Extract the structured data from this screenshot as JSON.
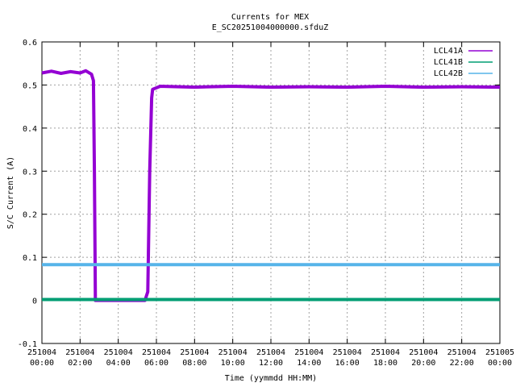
{
  "chart_data": {
    "type": "line",
    "title": "Currents for MEX",
    "subtitle": "E_SC20251004000000.sfduZ",
    "xlabel": "Time (yymmdd HH:MM)",
    "ylabel": "S/C Current (A)",
    "xlim": [
      0,
      24
    ],
    "ylim": [
      -0.1,
      0.6
    ],
    "grid": true,
    "legend_position": "top-right",
    "y_ticks": [
      {
        "value": -0.1,
        "label": "-0.1"
      },
      {
        "value": 0,
        "label": "0"
      },
      {
        "value": 0.1,
        "label": "0.1"
      },
      {
        "value": 0.2,
        "label": "0.2"
      },
      {
        "value": 0.3,
        "label": "0.3"
      },
      {
        "value": 0.4,
        "label": "0.4"
      },
      {
        "value": 0.5,
        "label": "0.5"
      },
      {
        "value": 0.6,
        "label": "0.6"
      }
    ],
    "x_ticks": [
      {
        "value": 0,
        "date": "251004",
        "time": "00:00"
      },
      {
        "value": 2,
        "date": "251004",
        "time": "02:00"
      },
      {
        "value": 4,
        "date": "251004",
        "time": "04:00"
      },
      {
        "value": 6,
        "date": "251004",
        "time": "06:00"
      },
      {
        "value": 8,
        "date": "251004",
        "time": "08:00"
      },
      {
        "value": 10,
        "date": "251004",
        "time": "10:00"
      },
      {
        "value": 12,
        "date": "251004",
        "time": "12:00"
      },
      {
        "value": 14,
        "date": "251004",
        "time": "14:00"
      },
      {
        "value": 16,
        "date": "251004",
        "time": "16:00"
      },
      {
        "value": 18,
        "date": "251004",
        "time": "18:00"
      },
      {
        "value": 20,
        "date": "251004",
        "time": "20:00"
      },
      {
        "value": 22,
        "date": "251004",
        "time": "22:00"
      },
      {
        "value": 24,
        "date": "251005",
        "time": "00:00"
      }
    ],
    "series": [
      {
        "name": "LCL41A",
        "color": "#9400d3",
        "points": [
          [
            0,
            0.528
          ],
          [
            0.5,
            0.532
          ],
          [
            1,
            0.527
          ],
          [
            1.5,
            0.531
          ],
          [
            2,
            0.528
          ],
          [
            2.3,
            0.533
          ],
          [
            2.6,
            0.525
          ],
          [
            2.7,
            0.51
          ],
          [
            2.75,
            0.3
          ],
          [
            2.8,
            0.0
          ],
          [
            3.5,
            0.0
          ],
          [
            4.5,
            0.0
          ],
          [
            5.4,
            0.0
          ],
          [
            5.55,
            0.02
          ],
          [
            5.65,
            0.3
          ],
          [
            5.75,
            0.47
          ],
          [
            5.8,
            0.49
          ],
          [
            6.2,
            0.497
          ],
          [
            8,
            0.495
          ],
          [
            10,
            0.497
          ],
          [
            12,
            0.495
          ],
          [
            14,
            0.496
          ],
          [
            16,
            0.495
          ],
          [
            18,
            0.497
          ],
          [
            20,
            0.495
          ],
          [
            22,
            0.496
          ],
          [
            24,
            0.495
          ]
        ]
      },
      {
        "name": "LCL41B",
        "color": "#009e73",
        "points": [
          [
            0,
            0.002
          ],
          [
            6,
            0.002
          ],
          [
            12,
            0.002
          ],
          [
            18,
            0.002
          ],
          [
            24,
            0.002
          ]
        ]
      },
      {
        "name": "LCL42B",
        "color": "#56b4e9",
        "points": [
          [
            0,
            0.083
          ],
          [
            6,
            0.083
          ],
          [
            12,
            0.083
          ],
          [
            18,
            0.083
          ],
          [
            24,
            0.083
          ]
        ]
      }
    ]
  }
}
